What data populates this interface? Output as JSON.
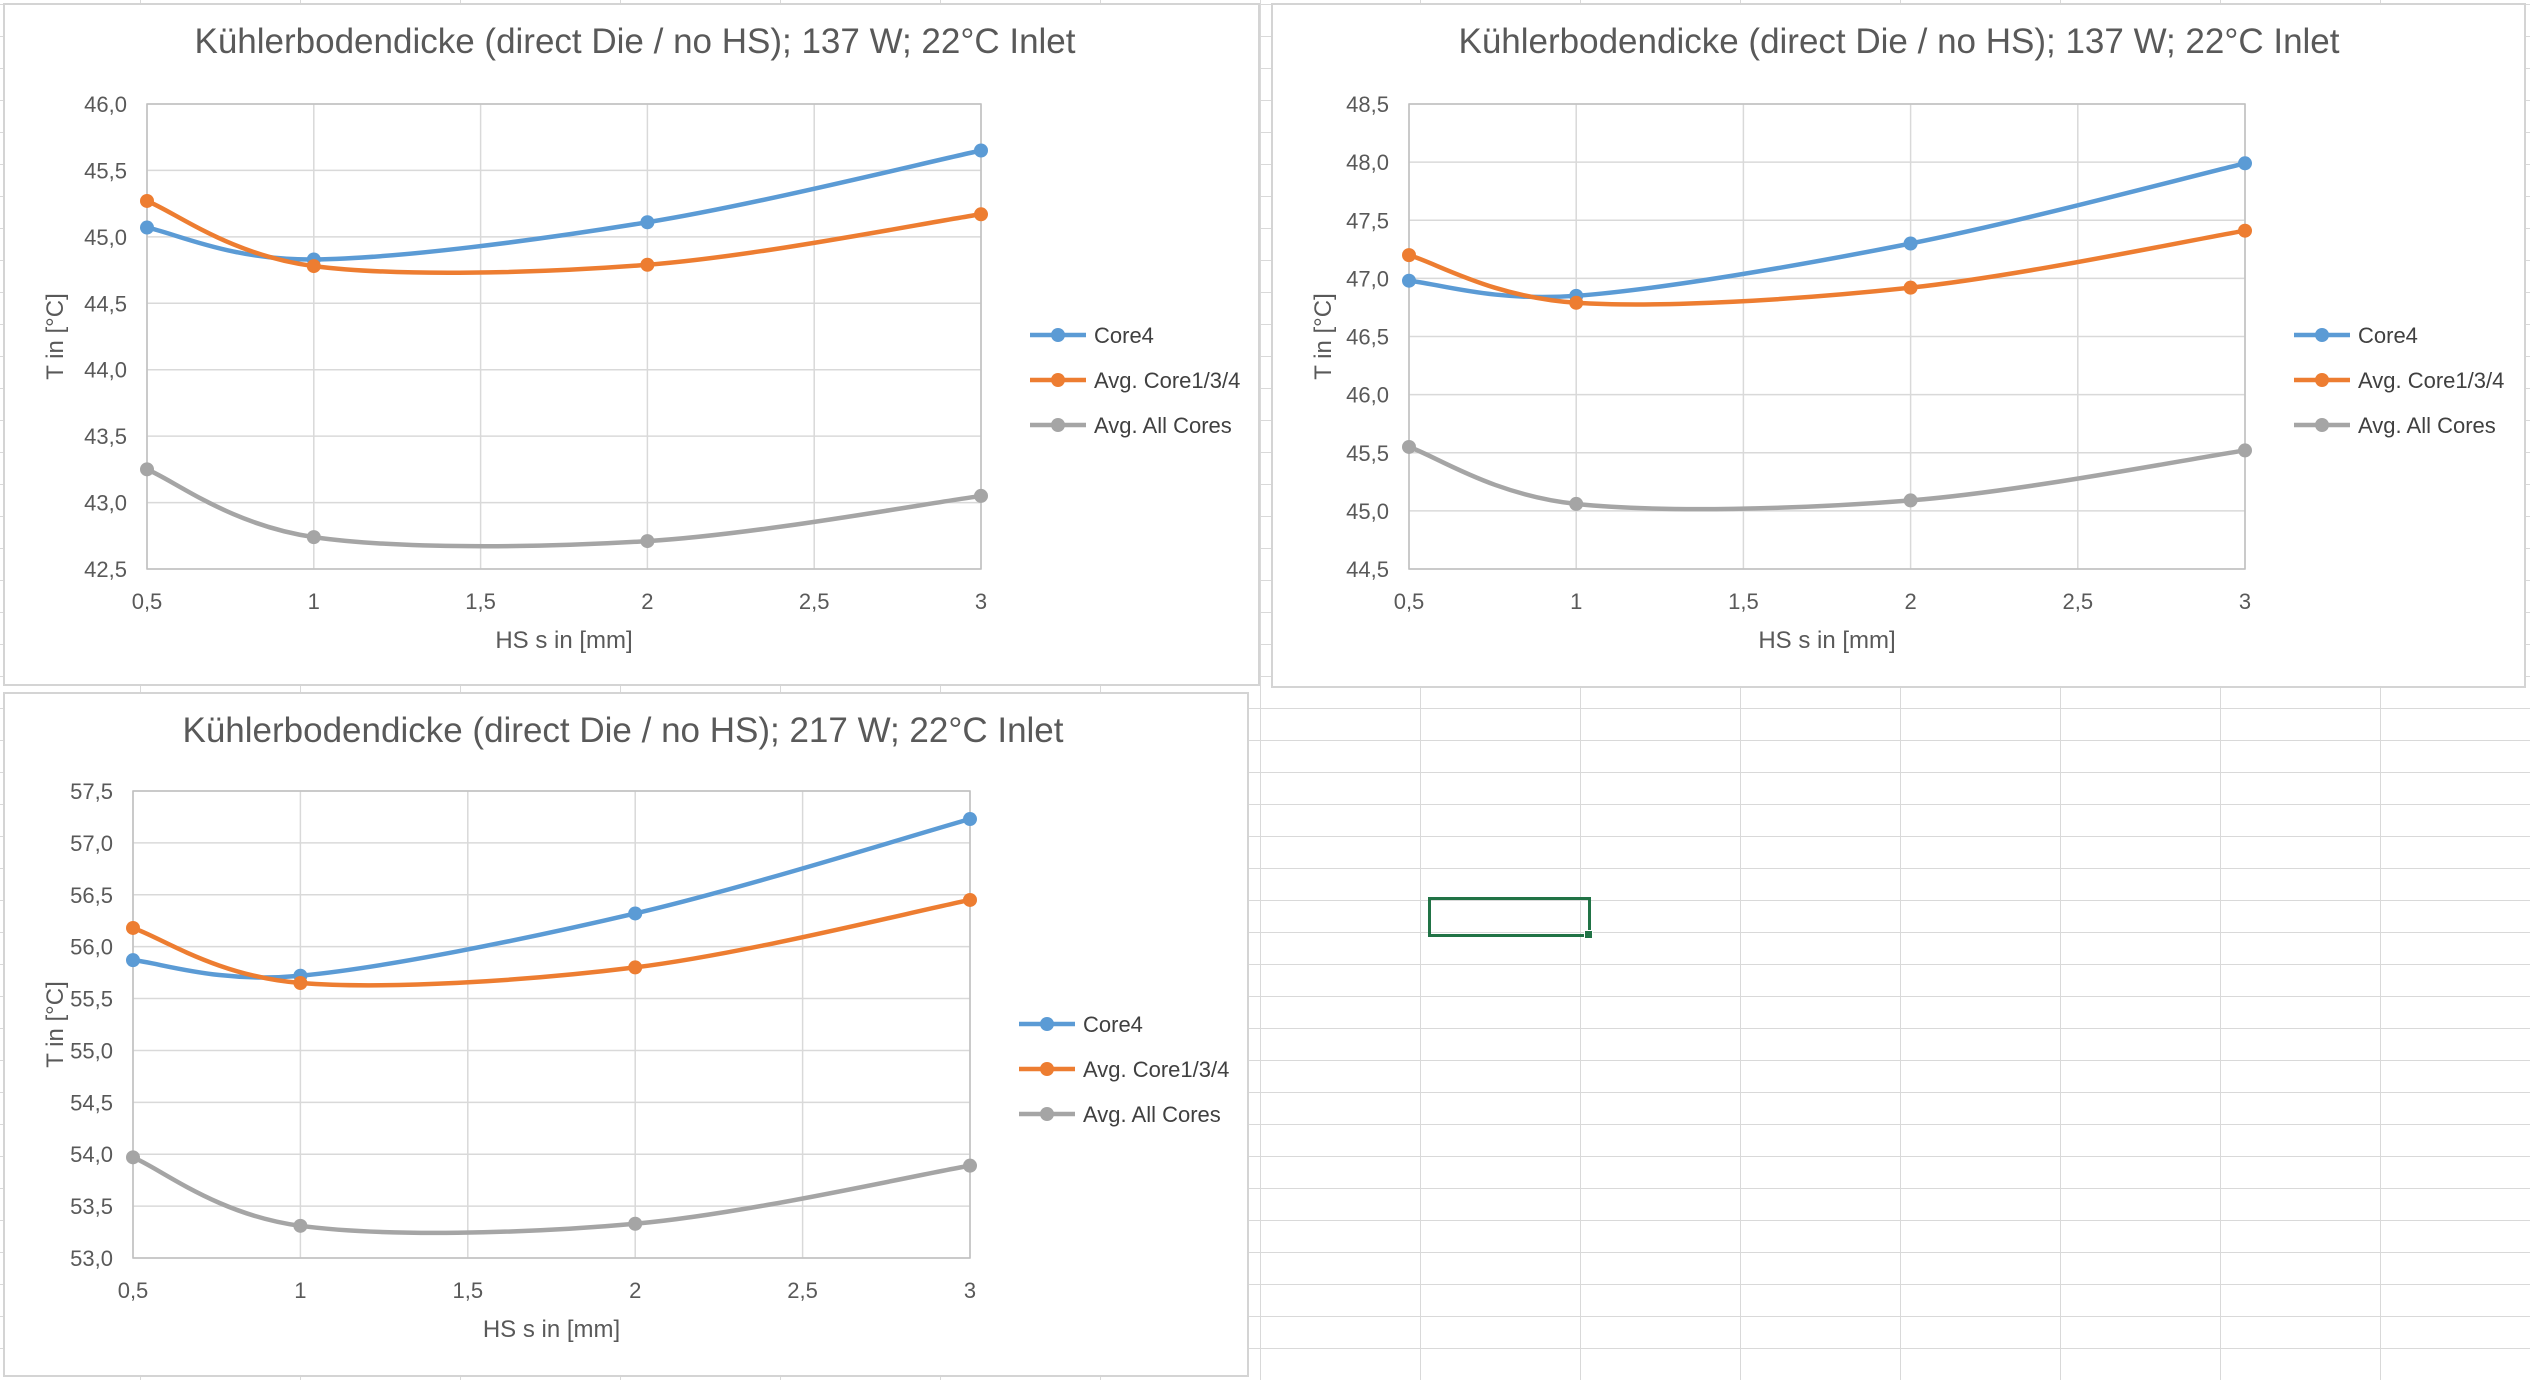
{
  "sheet": {
    "grid_color": "#d9d9d9",
    "selection_color": "#217346"
  },
  "chart_data": [
    {
      "type": "line",
      "title": "Kühlerbodendicke (direct Die / no HS); 137 W; 22°C Inlet",
      "xlabel": "HS s in [mm]",
      "ylabel": "T in [°C]",
      "x": [
        0.5,
        1,
        2,
        3
      ],
      "xlim": [
        0.5,
        3
      ],
      "xticks": [
        0.5,
        1,
        1.5,
        2,
        2.5,
        3
      ],
      "xtick_labels": [
        "0,5",
        "1",
        "1,5",
        "2",
        "2,5",
        "3"
      ],
      "ylim": [
        42.5,
        46.0
      ],
      "yticks": [
        42.5,
        43.0,
        43.5,
        44.0,
        44.5,
        45.0,
        45.5,
        46.0
      ],
      "ytick_labels": [
        "42,5",
        "43,0",
        "43,5",
        "44,0",
        "44,5",
        "45,0",
        "45,5",
        "46,0"
      ],
      "grid": true,
      "legend_position": "right",
      "series": [
        {
          "name": "Core4",
          "color": "#5b9bd5",
          "values": [
            45.07,
            44.83,
            45.11,
            45.65
          ]
        },
        {
          "name": "Avg. Core1/3/4",
          "color": "#ed7d31",
          "values": [
            45.27,
            44.78,
            44.79,
            45.17
          ]
        },
        {
          "name": "Avg. All Cores",
          "color": "#a5a5a5",
          "values": [
            43.25,
            42.74,
            42.71,
            43.05
          ]
        }
      ]
    },
    {
      "type": "line",
      "title": "Kühlerbodendicke (direct Die / no HS); 137 W; 22°C Inlet",
      "xlabel": "HS s in [mm]",
      "ylabel": "T in [°C]",
      "x": [
        0.5,
        1,
        2,
        3
      ],
      "xlim": [
        0.5,
        3
      ],
      "xticks": [
        0.5,
        1,
        1.5,
        2,
        2.5,
        3
      ],
      "xtick_labels": [
        "0,5",
        "1",
        "1,5",
        "2",
        "2,5",
        "3"
      ],
      "ylim": [
        44.5,
        48.5
      ],
      "yticks": [
        44.5,
        45.0,
        45.5,
        46.0,
        46.5,
        47.0,
        47.5,
        48.0,
        48.5
      ],
      "ytick_labels": [
        "44,5",
        "45,0",
        "45,5",
        "46,0",
        "46,5",
        "47,0",
        "47,5",
        "48,0",
        "48,5"
      ],
      "grid": true,
      "legend_position": "right",
      "series": [
        {
          "name": "Core4",
          "color": "#5b9bd5",
          "values": [
            46.98,
            46.85,
            47.3,
            47.99
          ]
        },
        {
          "name": "Avg. Core1/3/4",
          "color": "#ed7d31",
          "values": [
            47.2,
            46.79,
            46.92,
            47.41
          ]
        },
        {
          "name": "Avg. All Cores",
          "color": "#a5a5a5",
          "values": [
            45.55,
            45.06,
            45.09,
            45.52
          ]
        }
      ]
    },
    {
      "type": "line",
      "title": "Kühlerbodendicke (direct Die / no HS); 217 W; 22°C Inlet",
      "xlabel": "HS s in [mm]",
      "ylabel": "T in [°C]",
      "x": [
        0.5,
        1,
        2,
        3
      ],
      "xlim": [
        0.5,
        3
      ],
      "xticks": [
        0.5,
        1,
        1.5,
        2,
        2.5,
        3
      ],
      "xtick_labels": [
        "0,5",
        "1",
        "1,5",
        "2",
        "2,5",
        "3"
      ],
      "ylim": [
        53.0,
        57.5
      ],
      "yticks": [
        53.0,
        53.5,
        54.0,
        54.5,
        55.0,
        55.5,
        56.0,
        56.5,
        57.0,
        57.5
      ],
      "ytick_labels": [
        "53,0",
        "53,5",
        "54,0",
        "54,5",
        "55,0",
        "55,5",
        "56,0",
        "56,5",
        "57,0",
        "57,5"
      ],
      "grid": true,
      "legend_position": "right",
      "series": [
        {
          "name": "Core4",
          "color": "#5b9bd5",
          "values": [
            55.87,
            55.72,
            56.32,
            57.23
          ]
        },
        {
          "name": "Avg. Core1/3/4",
          "color": "#ed7d31",
          "values": [
            56.18,
            55.65,
            55.8,
            56.45
          ]
        },
        {
          "name": "Avg. All Cores",
          "color": "#a5a5a5",
          "values": [
            53.97,
            53.31,
            53.33,
            53.89
          ]
        }
      ]
    }
  ]
}
